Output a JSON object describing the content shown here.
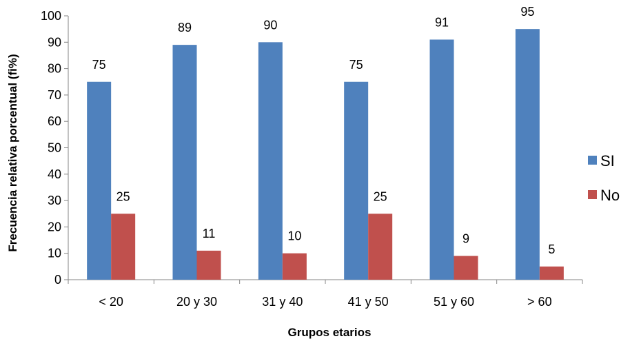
{
  "chart_data": {
    "type": "bar",
    "title": "",
    "xlabel": "Grupos etarios",
    "ylabel": "Frecuencia relativa porcentual (fi%)",
    "categories": [
      "< 20",
      "20 y 30",
      "31 y 40",
      "41 y 50",
      "51 y 60",
      "> 60"
    ],
    "series": [
      {
        "name": "SI",
        "color": "#4f81bd",
        "values": [
          75,
          89,
          90,
          75,
          91,
          95
        ]
      },
      {
        "name": "No",
        "color": "#c0504d",
        "values": [
          25,
          11,
          10,
          25,
          9,
          5
        ]
      }
    ],
    "ylim": [
      0,
      100
    ],
    "yticks": [
      0,
      10,
      20,
      30,
      40,
      50,
      60,
      70,
      80,
      90,
      100
    ],
    "grid": false,
    "legend_position": "right"
  }
}
